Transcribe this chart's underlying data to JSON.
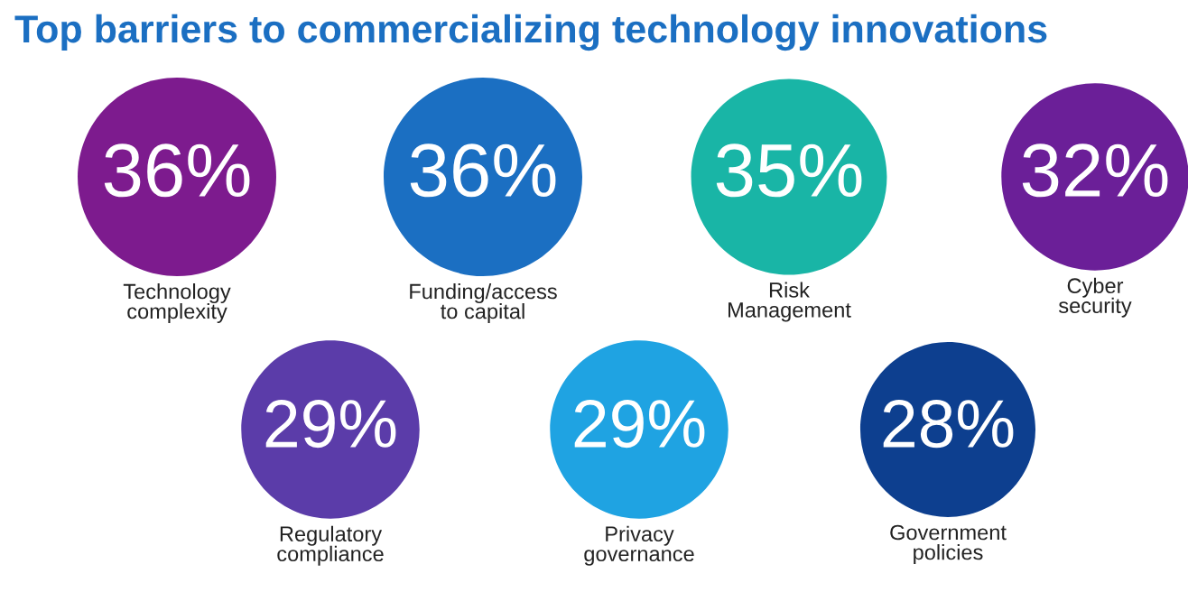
{
  "chart_data": {
    "type": "other",
    "title": "Top barriers to commercializing technology innovations",
    "categories": [
      "Technology\ncomplexity",
      "Funding/access\nto capital",
      "Risk\nManagement",
      "Cyber\nsecurity",
      "Regulatory\ncompliance",
      "Privacy\ngovernance",
      "Government\npolicies"
    ],
    "values": [
      36,
      36,
      35,
      32,
      29,
      29,
      28
    ],
    "value_labels": [
      "36%",
      "36%",
      "35%",
      "32%",
      "29%",
      "29%",
      "28%"
    ],
    "colors": [
      "#7d1b8e",
      "#1b6fc2",
      "#19b5a6",
      "#6b1f98",
      "#5b3ca9",
      "#1fa3e2",
      "#0d3f8f"
    ]
  }
}
